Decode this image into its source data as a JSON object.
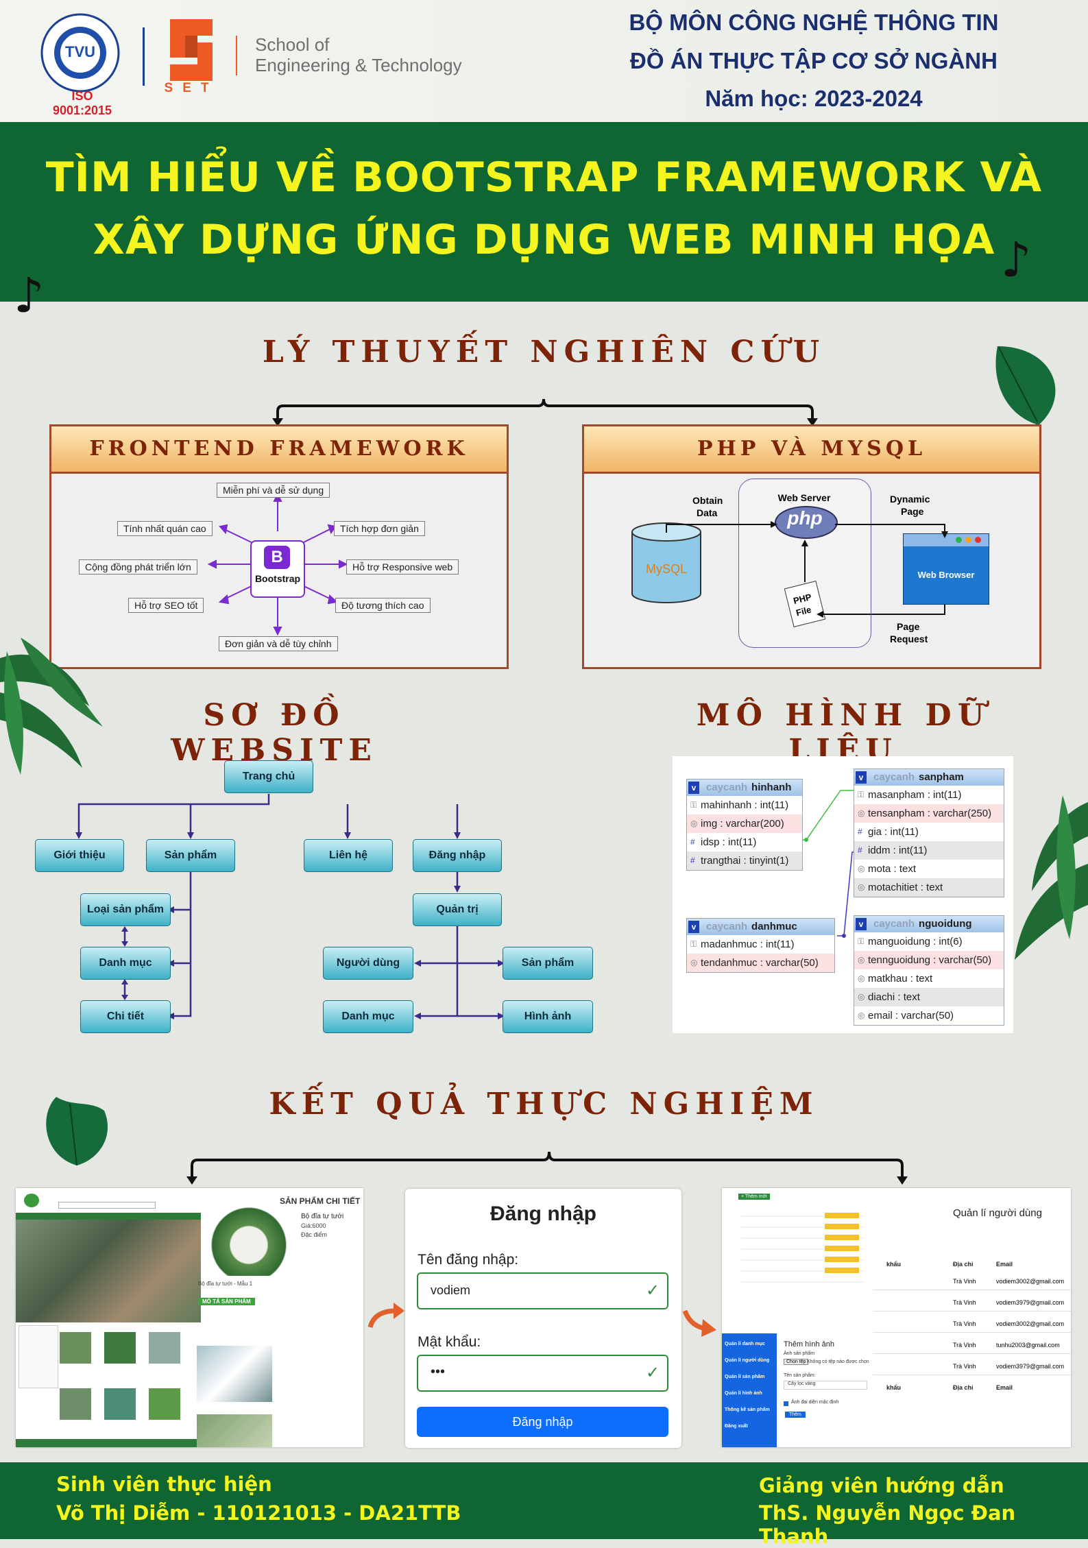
{
  "header": {
    "iso_label": "ISO 9001:2015",
    "tvu_ring_top": "TRƯỜNG ĐẠI HỌC TRÀ VINH",
    "tvu_ring_bottom": "TRA VINH UNIVERSITY",
    "tvu_logo_letters": "TVU",
    "set_logo_letters": "SET",
    "school_line1": "School of",
    "school_line2": "Engineering & Technology",
    "dept": "BỘ MÔN CÔNG NGHỆ THÔNG TIN",
    "project": "ĐỒ ÁN THỰC TẬP CƠ SỞ NGÀNH",
    "year": "Năm học: 2023-2024"
  },
  "title": {
    "line1": "TÌM HIỂU VỀ BOOTSTRAP FRAMEWORK VÀ",
    "line2": "XÂY DỰNG ỨNG DỤNG WEB MINH HỌA"
  },
  "theory": {
    "heading": "LÝ THUYẾT NGHIÊN CỨU",
    "frontend": {
      "heading": "FRONTEND FRAMEWORK",
      "center_label": "Bootstrap",
      "center_letter": "B",
      "features": [
        "Miễn phí và dễ sử dụng",
        "Tích hợp đơn giản",
        "Hỗ trợ Responsive web",
        "Độ tương thích cao",
        "Đơn giản và dễ tùy chỉnh",
        "Hỗ trợ SEO tốt",
        "Cộng đồng phát triển lớn",
        "Tính nhất quán cao"
      ]
    },
    "php_mysql": {
      "heading": "PHP VÀ MYSQL",
      "web_server": "Web Server",
      "php_logo": "php",
      "mysql_logo": "MySQL",
      "obtain_data_1": "Obtain",
      "obtain_data_2": "Data",
      "dynamic_page_1": "Dynamic",
      "dynamic_page_2": "Page",
      "web_browser": "Web Browser",
      "php_file_1": "PHP",
      "php_file_2": "File",
      "page_request_1": "Page",
      "page_request_2": "Request"
    }
  },
  "sitemap": {
    "heading": "SƠ ĐỒ WEBSITE",
    "home": "Trang chủ",
    "intro": "Giới thiệu",
    "products": "Sản phẩm",
    "contact": "Liên hệ",
    "login": "Đăng nhập",
    "product_type": "Loại sản phẩm",
    "category": "Danh mục",
    "detail": "Chi tiết",
    "admin": "Quản trị",
    "users": "Người dùng",
    "admin_products": "Sản phẩm",
    "admin_category": "Danh mục",
    "images": "Hình ảnh"
  },
  "data_model": {
    "heading": "MÔ HÌNH DỮ LIỆU",
    "db_name": "caycanh",
    "tables": {
      "hinhanh": {
        "name": "hinhanh",
        "rows": [
          "mahinhanh : int(11)",
          "img : varchar(200)",
          "idsp : int(11)",
          "trangthai : tinyint(1)"
        ]
      },
      "sanpham": {
        "name": "sanpham",
        "rows": [
          "masanpham : int(11)",
          "tensanpham : varchar(250)",
          "gia : int(11)",
          "iddm : int(11)",
          "mota : text",
          "motachitiet : text"
        ]
      },
      "danhmuc": {
        "name": "danhmuc",
        "rows": [
          "madanhmuc : int(11)",
          "tendanhmuc : varchar(50)"
        ]
      },
      "nguoidung": {
        "name": "nguoidung",
        "rows": [
          "manguoidung : int(6)",
          "tennguoidung : varchar(50)",
          "matkhau : text",
          "diachi : text",
          "email : varchar(50)"
        ]
      }
    }
  },
  "results": {
    "heading": "KẾT QUẢ THỰC NGHIỆM",
    "shop": {
      "detail_title": "SẢN PHẨM CHI TIẾT",
      "product_name": "Bộ đĩa tự tưới",
      "price": "Giá:6000",
      "feature": "Đặc điểm",
      "caption": "Bộ đĩa tự tưới - Mẫu 1",
      "desc_tab": "MÔ TẢ SẢN PHẨM"
    },
    "login": {
      "title": "Đăng nhập",
      "username_label": "Tên đăng nhập:",
      "username_value": "vodiem",
      "password_label": "Mật khẩu:",
      "password_value": "•••",
      "submit": "Đăng nhập"
    },
    "admin": {
      "title": "Quản lí người dùng",
      "add_btn": "+ Thêm mới",
      "col_address": "Địa chỉ",
      "col_email": "Email",
      "col_password": "khẩu",
      "rows": [
        {
          "addr": "Trà Vinh",
          "email": "vodiem3002@gmail.com"
        },
        {
          "addr": "Trà Vinh",
          "email": "vodiem3979@gmail.com"
        },
        {
          "addr": "Trà Vinh",
          "email": "vodiem3002@gmail.com"
        },
        {
          "addr": "Trà Vinh",
          "email": "tunhu2003@gmail.com"
        },
        {
          "addr": "Trà Vinh",
          "email": "vodiem3979@gmail.com"
        }
      ],
      "sidebar": [
        "Quản lí danh mục",
        "Quản lí người dùng",
        "Quản lí sản phẩm",
        "Quản lí hình ảnh",
        "Thống kê sản phẩm",
        "Đăng xuất"
      ],
      "add_image_title": "Thêm hình ảnh",
      "add_image_label": "Ảnh sản phẩm",
      "choose_file": "Chọn tệp",
      "no_file": "Không có tệp nào được chọn",
      "product_name_label": "Tên sản phẩm:",
      "product_name_value": "Cây lọc vàng",
      "default_checkbox": "Ảnh đại diện mặc định",
      "submit": "Thêm"
    }
  },
  "footer": {
    "student_label": "Sinh viên thực hiện",
    "student": "Võ Thị Diễm - 110121013 - DA21TTB",
    "advisor_label": "Giảng viên hướng dẫn",
    "advisor": "ThS. Nguyễn Ngọc Đan Thanh"
  },
  "colors": {
    "title_bg": "#0f6632",
    "title_text": "#f4f41e",
    "section_heading": "#7c2308",
    "header_text": "#1b2f6e",
    "login_button": "#0d6efd"
  }
}
